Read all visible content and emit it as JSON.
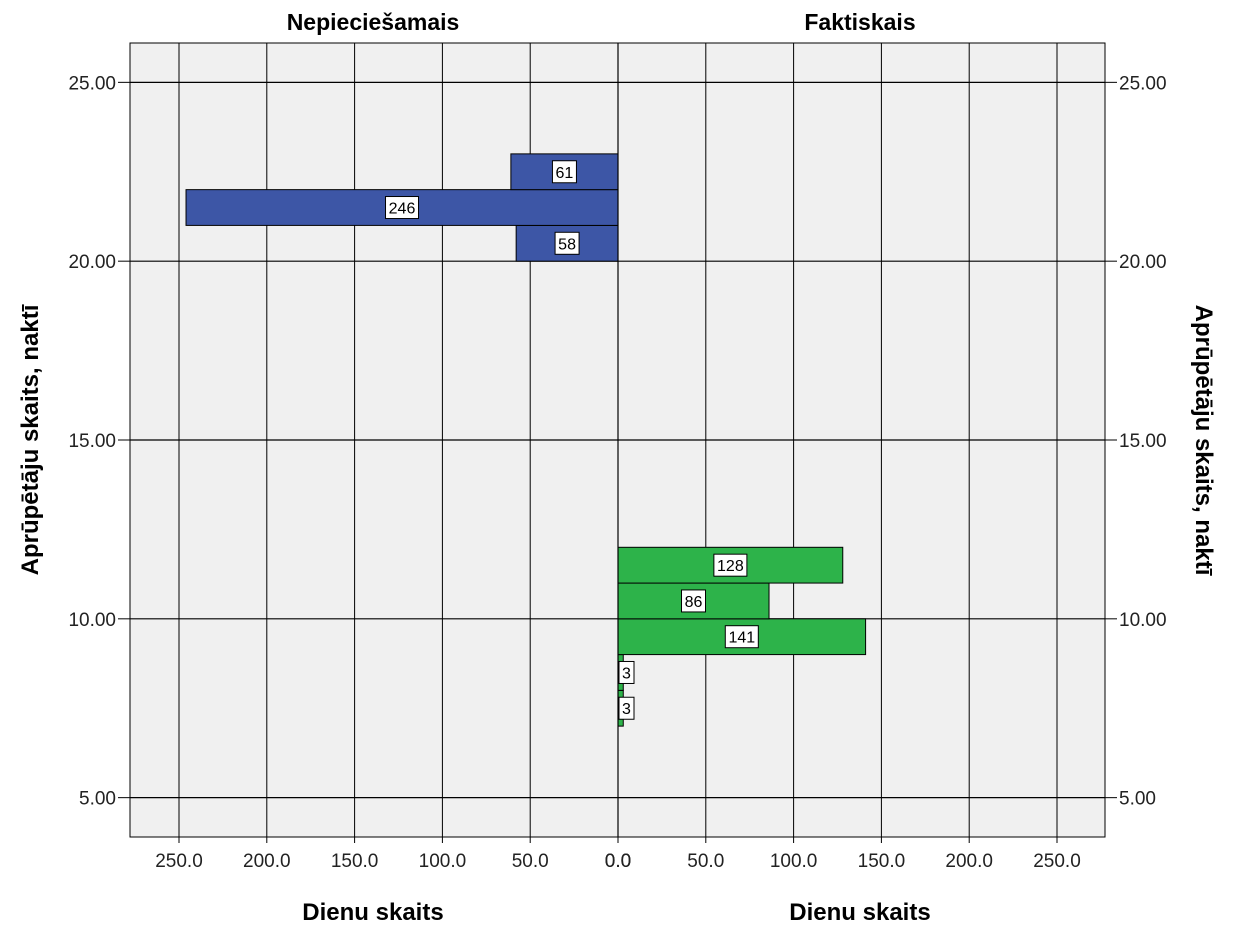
{
  "chart_data": {
    "type": "bar",
    "orientation": "horizontal",
    "layout": "back-to-back",
    "y_axis": {
      "label": "Aprūpētāju skaits, naktī",
      "range": [
        3.9,
        26.1
      ],
      "ticks": [
        5,
        10,
        15,
        20,
        25
      ],
      "tick_labels": [
        "5.00",
        "10.00",
        "15.00",
        "20.00",
        "25.00"
      ],
      "shown_on": "both"
    },
    "bin_width": 1,
    "panels": [
      {
        "title": "Nepieciešamais",
        "xlabel": "Dienu skaits",
        "direction": "left",
        "x_range": [
          0,
          280
        ],
        "x_ticks": [
          250,
          200,
          150,
          100,
          50,
          0
        ],
        "x_tick_labels": [
          "250.0",
          "200.0",
          "150.0",
          "100.0",
          "50.0",
          "0.0"
        ],
        "color": "#3d56a6",
        "bars": [
          {
            "y": 20.5,
            "value": 58,
            "label": "58"
          },
          {
            "y": 21.5,
            "value": 246,
            "label": "246"
          },
          {
            "y": 22.5,
            "value": 61,
            "label": "61"
          }
        ]
      },
      {
        "title": "Faktiskais",
        "xlabel": "Dienu skaits",
        "direction": "right",
        "x_range": [
          0,
          280
        ],
        "x_ticks": [
          0,
          50,
          100,
          150,
          200,
          250
        ],
        "x_tick_labels": [
          "0.0",
          "50.0",
          "100.0",
          "150.0",
          "200.0",
          "250.0"
        ],
        "color": "#2db34a",
        "bars": [
          {
            "y": 7.5,
            "value": 3,
            "label": "3"
          },
          {
            "y": 8.5,
            "value": 3,
            "label": "3"
          },
          {
            "y": 9.5,
            "value": 141,
            "label": "141"
          },
          {
            "y": 10.5,
            "value": 86,
            "label": "86"
          },
          {
            "y": 11.5,
            "value": 128,
            "label": "128"
          }
        ]
      }
    ],
    "grid": true,
    "plot_background": "#f0f0f0"
  }
}
